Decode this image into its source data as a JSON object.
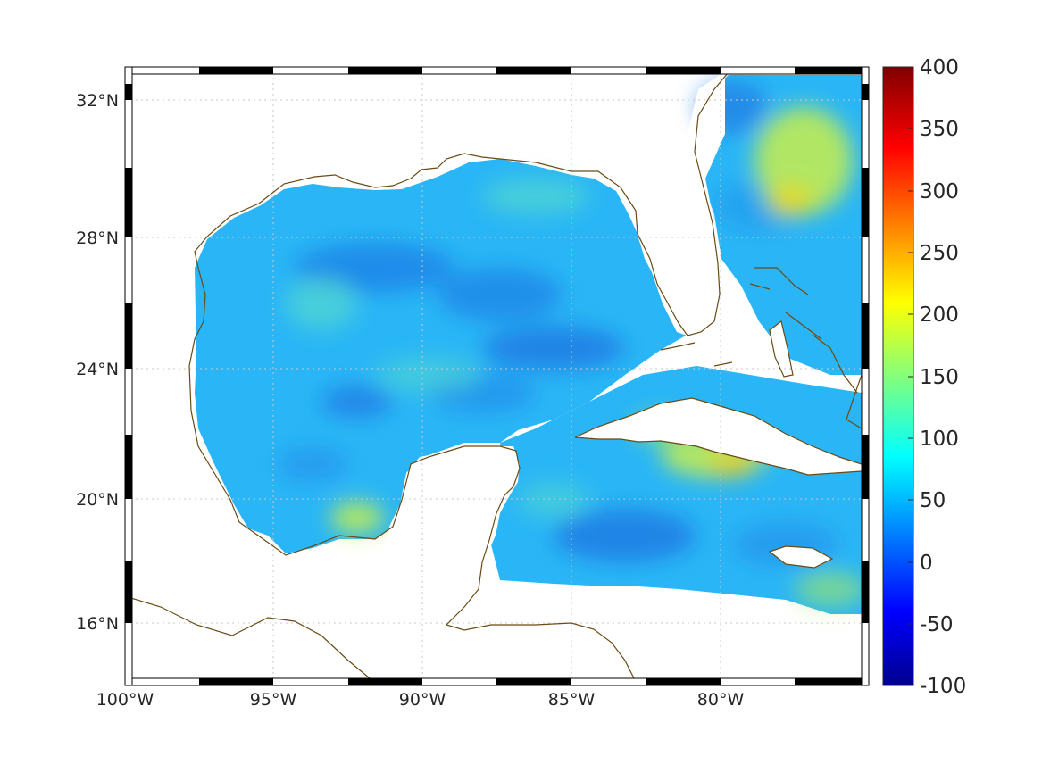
{
  "map": {
    "projection": "mercator-like",
    "extent": {
      "lon": [
        -100,
        -75
      ],
      "lat": [
        14.2,
        32.9
      ]
    },
    "frame": "checkered black/white border",
    "grid": "dotted",
    "coastline_color": "#6b4a14",
    "lon_ticks": [
      {
        "value": -100,
        "label": "100°W"
      },
      {
        "value": -95,
        "label": "95°W"
      },
      {
        "value": -90,
        "label": "90°W"
      },
      {
        "value": -85,
        "label": "85°W"
      },
      {
        "value": -80,
        "label": "80°W"
      }
    ],
    "lat_ticks": [
      {
        "value": 32,
        "label": "32°N"
      },
      {
        "value": 28,
        "label": "28°N"
      },
      {
        "value": 24,
        "label": "24°N"
      },
      {
        "value": 20,
        "label": "20°N"
      },
      {
        "value": 16,
        "label": "16°N"
      }
    ],
    "field_description": "gridded ocean field, mostly values 40-120, higher (150-220) near Cuba and east of Florida",
    "colormap": "jet"
  },
  "colorbar": {
    "range": [
      -100,
      400
    ],
    "tick_labels": [
      "400",
      "350",
      "300",
      "250",
      "200",
      "150",
      "100",
      "50",
      "0",
      "-50",
      "-100"
    ],
    "colors": [
      "#00008f",
      "#0000ff",
      "#00ffff",
      "#ffff00",
      "#ff0000",
      "#800000"
    ]
  }
}
